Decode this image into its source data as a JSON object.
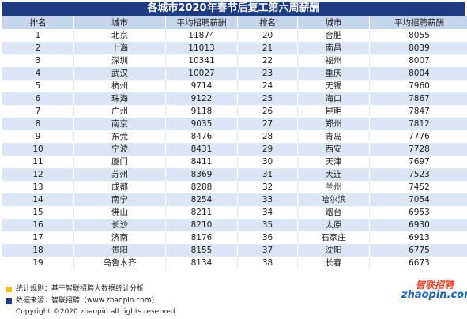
{
  "header": {
    "title": "各城市2020年春节后复工第六周薪酬"
  },
  "table": {
    "columns": [
      "排名",
      "城市",
      "平均招聘薪酬",
      "排名",
      "城市",
      "平均招聘薪酬"
    ],
    "rows": [
      [
        1,
        "北京",
        11874,
        20,
        "合肥",
        8055
      ],
      [
        2,
        "上海",
        11013,
        21,
        "南昌",
        8039
      ],
      [
        3,
        "深圳",
        10341,
        22,
        "福州",
        8007
      ],
      [
        4,
        "武汉",
        10027,
        23,
        "重庆",
        8004
      ],
      [
        5,
        "杭州",
        9714,
        24,
        "无锡",
        7960
      ],
      [
        6,
        "珠海",
        9122,
        25,
        "海口",
        7867
      ],
      [
        7,
        "广州",
        9118,
        26,
        "昆明",
        7847
      ],
      [
        8,
        "南京",
        9035,
        27,
        "郑州",
        7812
      ],
      [
        9,
        "东莞",
        8476,
        28,
        "青岛",
        7776
      ],
      [
        10,
        "宁波",
        8431,
        29,
        "西安",
        7728
      ],
      [
        11,
        "厦门",
        8411,
        30,
        "天津",
        7697
      ],
      [
        12,
        "苏州",
        8369,
        31,
        "大连",
        7523
      ],
      [
        13,
        "成都",
        8288,
        32,
        "兰州",
        7452
      ],
      [
        14,
        "南宁",
        8254,
        33,
        "哈尔滨",
        7054
      ],
      [
        15,
        "佛山",
        8211,
        34,
        "烟台",
        6953
      ],
      [
        16,
        "长沙",
        8210,
        35,
        "太原",
        6930
      ],
      [
        17,
        "济南",
        8176,
        36,
        "石家庄",
        6913
      ],
      [
        18,
        "贵阳",
        8155,
        37,
        "沈阳",
        6775
      ],
      [
        19,
        "乌鲁木齐",
        8134,
        38,
        "长春",
        6673
      ]
    ]
  },
  "footer": {
    "notes": [
      "统计规则：基于智联招聘大数据统计分析",
      "数据来源：智联招聘（www.zhaopin.com）"
    ],
    "copyright": "Copyright ©2020 zhaopin all rights reserved",
    "logo": {
      "brand": "智联招聘",
      "site": "zhaopin.com"
    }
  }
}
